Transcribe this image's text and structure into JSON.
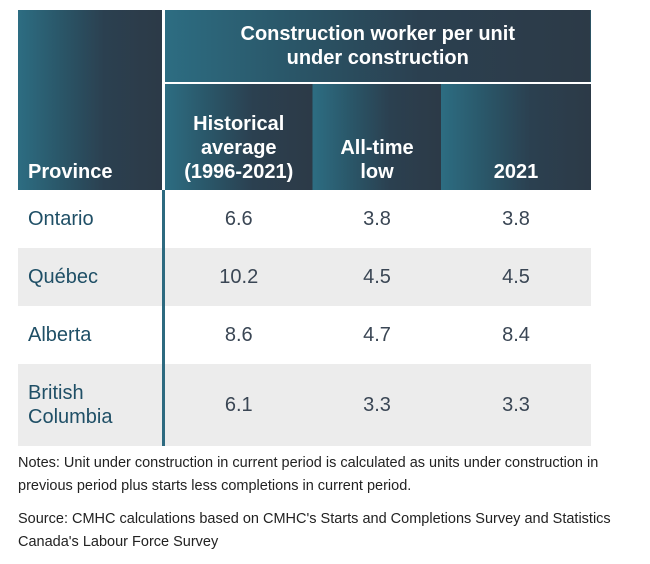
{
  "table": {
    "group_header": "Construction worker per unit under construction",
    "columns": [
      "Province",
      "Historical average (1996-2021)",
      "All-time low",
      "2021"
    ],
    "rows": [
      {
        "province": "Ontario",
        "historical": "6.6",
        "low": "3.8",
        "y2021": "3.8"
      },
      {
        "province": "Québec",
        "historical": "10.2",
        "low": "4.5",
        "y2021": "4.5"
      },
      {
        "province": "Alberta",
        "historical": "8.6",
        "low": "4.7",
        "y2021": "8.4"
      },
      {
        "province": "British Columbia",
        "historical": "6.1",
        "low": "3.3",
        "y2021": "3.3"
      }
    ]
  },
  "notes": {
    "note": "Notes: Unit under construction in current period is calculated as units under construction in previous period plus starts less completions in current period.",
    "source": "Source: CMHC calculations based on CMHC's Starts and Completions Survey and Statistics Canada's Labour Force Survey"
  },
  "colors": {
    "header_teal": "#2d6d82",
    "header_slate": "#2c3a47",
    "row_shade": "#ececec",
    "province_text": "#1f4f66"
  }
}
